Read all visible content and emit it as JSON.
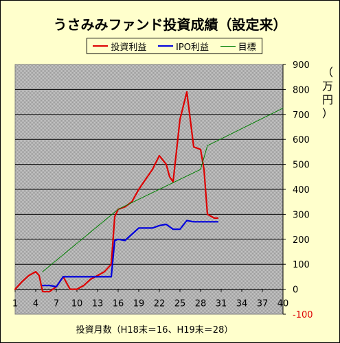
{
  "chart_data": {
    "type": "line",
    "title": "うさみみファンド投資成績（設定来）",
    "xlabel": "投資月数（H18末＝16、H19末＝28）",
    "ylabel_unit": "（万円）",
    "ylim": [
      -100,
      900
    ],
    "xlim": [
      1,
      40
    ],
    "grid": true,
    "legend_position": "top",
    "x_ticks": [
      1,
      4,
      7,
      10,
      13,
      16,
      19,
      22,
      25,
      28,
      31,
      34,
      37,
      40
    ],
    "y_ticks": [
      -100,
      0,
      100,
      200,
      300,
      400,
      500,
      600,
      700,
      800,
      900
    ],
    "series": [
      {
        "name": "投資利益",
        "color": "#dd0000",
        "points": [
          [
            1,
            0
          ],
          [
            2,
            30
          ],
          [
            3,
            55
          ],
          [
            4,
            70
          ],
          [
            4.5,
            55
          ],
          [
            5,
            -10
          ],
          [
            6,
            -10
          ],
          [
            7,
            10
          ],
          [
            8,
            50
          ],
          [
            9,
            0
          ],
          [
            10,
            0
          ],
          [
            11,
            15
          ],
          [
            12,
            40
          ],
          [
            13,
            55
          ],
          [
            14,
            70
          ],
          [
            15,
            100
          ],
          [
            15.5,
            290
          ],
          [
            16,
            320
          ],
          [
            17,
            330
          ],
          [
            18,
            350
          ],
          [
            19,
            400
          ],
          [
            20,
            440
          ],
          [
            21,
            480
          ],
          [
            22,
            535
          ],
          [
            23,
            500
          ],
          [
            23.5,
            450
          ],
          [
            24,
            430
          ],
          [
            25,
            680
          ],
          [
            26,
            790
          ],
          [
            27,
            570
          ],
          [
            28,
            560
          ],
          [
            28.5,
            480
          ],
          [
            29,
            300
          ],
          [
            30,
            285
          ],
          [
            30.5,
            285
          ]
        ]
      },
      {
        "name": "IPO利益",
        "color": "#0000dd",
        "points": [
          [
            5,
            15
          ],
          [
            6,
            15
          ],
          [
            7,
            10
          ],
          [
            8,
            50
          ],
          [
            9,
            50
          ],
          [
            10,
            50
          ],
          [
            11,
            50
          ],
          [
            12,
            50
          ],
          [
            13,
            50
          ],
          [
            14,
            50
          ],
          [
            15,
            50
          ],
          [
            15.5,
            195
          ],
          [
            16,
            200
          ],
          [
            17,
            195
          ],
          [
            18,
            220
          ],
          [
            19,
            245
          ],
          [
            20,
            245
          ],
          [
            21,
            245
          ],
          [
            22,
            255
          ],
          [
            23,
            260
          ],
          [
            24,
            240
          ],
          [
            25,
            240
          ],
          [
            26,
            275
          ],
          [
            27,
            270
          ],
          [
            28,
            270
          ],
          [
            29,
            270
          ],
          [
            30,
            270
          ],
          [
            30.5,
            270
          ]
        ]
      },
      {
        "name": "目標",
        "color": "#008000",
        "points": [
          [
            5,
            70
          ],
          [
            16,
            320
          ],
          [
            28,
            480
          ],
          [
            29,
            575
          ],
          [
            40,
            725
          ]
        ]
      }
    ]
  }
}
